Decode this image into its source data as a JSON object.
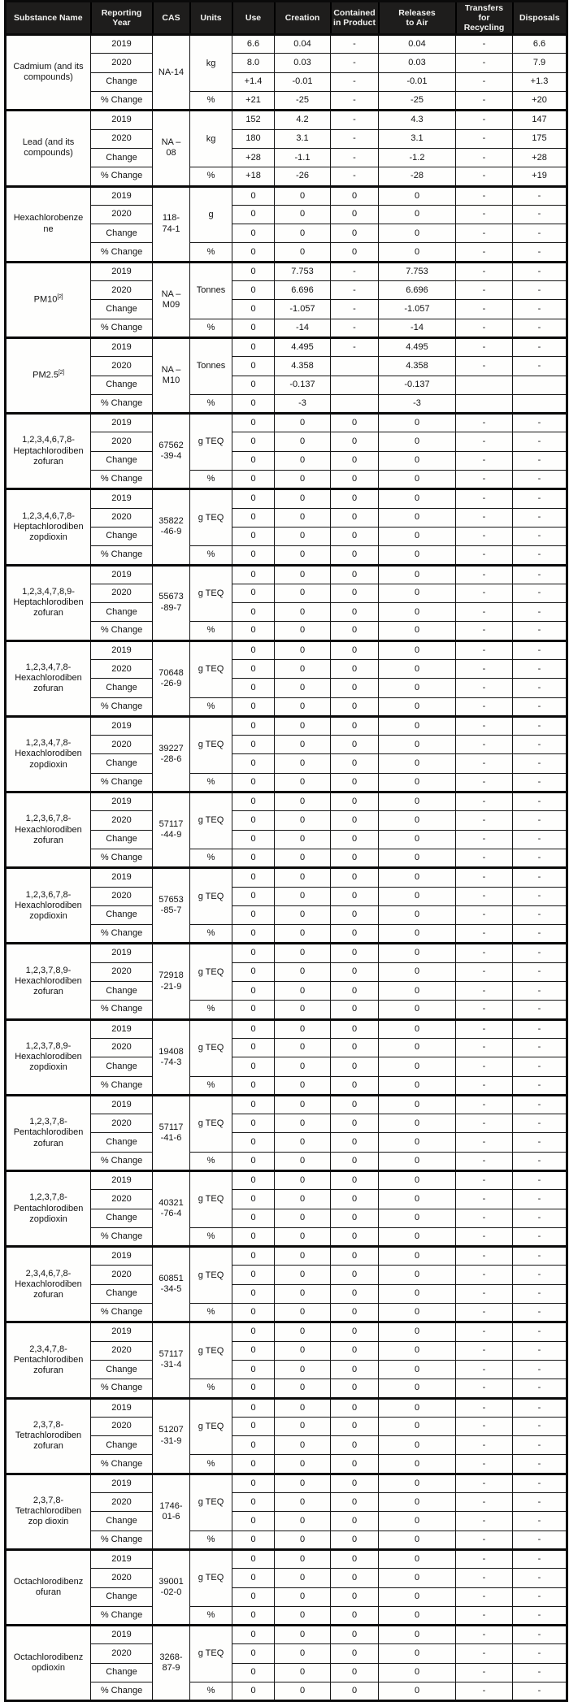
{
  "table": {
    "columns": [
      "Substance Name",
      "Reporting\nYear",
      "CAS",
      "Units",
      "Use",
      "Creation",
      "Contained\nin Product",
      "Releases\nto Air",
      "Transfers\nfor\nRecycling",
      "Disposals"
    ],
    "row_labels": [
      "2019",
      "2020",
      "Change",
      "% Change"
    ],
    "percent_unit": "%",
    "substances": [
      {
        "name": "Cadmium (and its\ncompounds)",
        "cas": "NA-14",
        "units": "kg",
        "rows": [
          [
            "6.6",
            "0.04",
            "-",
            "0.04",
            "-",
            "6.6"
          ],
          [
            "8.0",
            "0.03",
            "-",
            "0.03",
            "-",
            "7.9"
          ],
          [
            "+1.4",
            "-0.01",
            "-",
            "-0.01",
            "-",
            "+1.3"
          ],
          [
            "+21",
            "-25",
            "-",
            "-25",
            "-",
            "+20"
          ]
        ]
      },
      {
        "name": "Lead (and its\ncompounds)",
        "cas": "NA –\n08",
        "units": "kg",
        "rows": [
          [
            "152",
            "4.2",
            "-",
            "4.3",
            "-",
            "147"
          ],
          [
            "180",
            "3.1",
            "-",
            "3.1",
            "-",
            "175"
          ],
          [
            "+28",
            "-1.1",
            "-",
            "-1.2",
            "-",
            "+28"
          ],
          [
            "+18",
            "-26",
            "-",
            "-28",
            "-",
            "+19"
          ]
        ]
      },
      {
        "name": "Hexachlorobenze\nne",
        "cas": "118-\n74-1",
        "units": "g",
        "rows": [
          [
            "0",
            "0",
            "0",
            "0",
            "-",
            "-"
          ],
          [
            "0",
            "0",
            "0",
            "0",
            "-",
            "-"
          ],
          [
            "0",
            "0",
            "0",
            "0",
            "-",
            "-"
          ],
          [
            "0",
            "0",
            "0",
            "0",
            "-",
            "-"
          ]
        ]
      },
      {
        "name": "PM10",
        "sup": "[2]",
        "cas": "NA –\nM09",
        "units": "Tonnes",
        "rows": [
          [
            "0",
            "7.753",
            "-",
            "7.753",
            "-",
            "-"
          ],
          [
            "0",
            "6.696",
            "-",
            "6.696",
            "-",
            "-"
          ],
          [
            "0",
            "-1.057",
            "-",
            "-1.057",
            "-",
            "-"
          ],
          [
            "0",
            "-14",
            "-",
            "-14",
            "-",
            "-"
          ]
        ]
      },
      {
        "name": "PM2.5",
        "sup": "[2]",
        "cas": "NA –\nM10",
        "units": "Tonnes",
        "rows": [
          [
            "0",
            "4.495",
            "-",
            "4.495",
            "-",
            "-"
          ],
          [
            "0",
            "4.358",
            "",
            "4.358",
            "-",
            "-"
          ],
          [
            "0",
            "-0.137",
            "",
            "-0.137",
            "",
            ""
          ],
          [
            "0",
            "-3",
            "",
            "-3",
            "",
            ""
          ]
        ]
      },
      {
        "name": "1,2,3,4,6,7,8-\nHeptachlorodiben\nzofuran",
        "cas": "67562\n-39-4",
        "units": "g TEQ",
        "rows": [
          [
            "0",
            "0",
            "0",
            "0",
            "-",
            "-"
          ],
          [
            "0",
            "0",
            "0",
            "0",
            "-",
            "-"
          ],
          [
            "0",
            "0",
            "0",
            "0",
            "-",
            "-"
          ],
          [
            "0",
            "0",
            "0",
            "0",
            "-",
            "-"
          ]
        ]
      },
      {
        "name": "1,2,3,4,6,7,8-\nHeptachlorodiben\nzopdioxin",
        "cas": "35822\n-46-9",
        "units": "g TEQ",
        "rows": [
          [
            "0",
            "0",
            "0",
            "0",
            "-",
            "-"
          ],
          [
            "0",
            "0",
            "0",
            "0",
            "-",
            "-"
          ],
          [
            "0",
            "0",
            "0",
            "0",
            "-",
            "-"
          ],
          [
            "0",
            "0",
            "0",
            "0",
            "-",
            "-"
          ]
        ]
      },
      {
        "name": "1,2,3,4,7,8,9-\nHeptachlorodiben\nzofuran",
        "cas": "55673\n-89-7",
        "units": "g TEQ",
        "rows": [
          [
            "0",
            "0",
            "0",
            "0",
            "-",
            "-"
          ],
          [
            "0",
            "0",
            "0",
            "0",
            "-",
            "-"
          ],
          [
            "0",
            "0",
            "0",
            "0",
            "-",
            "-"
          ],
          [
            "0",
            "0",
            "0",
            "0",
            "-",
            "-"
          ]
        ]
      },
      {
        "name": "1,2,3,4,7,8-\nHexachlorodiben\nzofuran",
        "cas": "70648\n-26-9",
        "units": "g TEQ",
        "rows": [
          [
            "0",
            "0",
            "0",
            "0",
            "-",
            "-"
          ],
          [
            "0",
            "0",
            "0",
            "0",
            "-",
            "-"
          ],
          [
            "0",
            "0",
            "0",
            "0",
            "-",
            "-"
          ],
          [
            "0",
            "0",
            "0",
            "0",
            "-",
            "-"
          ]
        ]
      },
      {
        "name": "1,2,3,4,7,8-\nHexachlorodiben\nzopdioxin",
        "cas": "39227\n-28-6",
        "units": "g TEQ",
        "rows": [
          [
            "0",
            "0",
            "0",
            "0",
            "-",
            "-"
          ],
          [
            "0",
            "0",
            "0",
            "0",
            "-",
            "-"
          ],
          [
            "0",
            "0",
            "0",
            "0",
            "-",
            "-"
          ],
          [
            "0",
            "0",
            "0",
            "0",
            "-",
            "-"
          ]
        ]
      },
      {
        "name": "1,2,3,6,7,8-\nHexachlorodiben\nzofuran",
        "cas": "57117\n-44-9",
        "units": "g TEQ",
        "rows": [
          [
            "0",
            "0",
            "0",
            "0",
            "-",
            "-"
          ],
          [
            "0",
            "0",
            "0",
            "0",
            "-",
            "-"
          ],
          [
            "0",
            "0",
            "0",
            "0",
            "-",
            "-"
          ],
          [
            "0",
            "0",
            "0",
            "0",
            "-",
            "-"
          ]
        ]
      },
      {
        "name": "1,2,3,6,7,8-\nHexachlorodiben\nzopdioxin",
        "cas": "57653\n-85-7",
        "units": "g TEQ",
        "rows": [
          [
            "0",
            "0",
            "0",
            "0",
            "-",
            "-"
          ],
          [
            "0",
            "0",
            "0",
            "0",
            "-",
            "-"
          ],
          [
            "0",
            "0",
            "0",
            "0",
            "-",
            "-"
          ],
          [
            "0",
            "0",
            "0",
            "0",
            "-",
            "-"
          ]
        ]
      },
      {
        "name": "1,2,3,7,8,9-\nHexachlorodiben\nzofuran",
        "cas": "72918\n-21-9",
        "units": "g TEQ",
        "rows": [
          [
            "0",
            "0",
            "0",
            "0",
            "-",
            "-"
          ],
          [
            "0",
            "0",
            "0",
            "0",
            "-",
            "-"
          ],
          [
            "0",
            "0",
            "0",
            "0",
            "-",
            "-"
          ],
          [
            "0",
            "0",
            "0",
            "0",
            "-",
            "-"
          ]
        ]
      },
      {
        "name": "1,2,3,7,8,9-\nHexachlorodiben\nzopdioxin",
        "cas": "19408\n-74-3",
        "units": "g TEQ",
        "rows": [
          [
            "0",
            "0",
            "0",
            "0",
            "-",
            "-"
          ],
          [
            "0",
            "0",
            "0",
            "0",
            "-",
            "-"
          ],
          [
            "0",
            "0",
            "0",
            "0",
            "-",
            "-"
          ],
          [
            "0",
            "0",
            "0",
            "0",
            "-",
            "-"
          ]
        ]
      },
      {
        "name": "1,2,3,7,8-\nPentachlorodiben\nzofuran",
        "cas": "57117\n-41-6",
        "units": "g TEQ",
        "rows": [
          [
            "0",
            "0",
            "0",
            "0",
            "-",
            "-"
          ],
          [
            "0",
            "0",
            "0",
            "0",
            "-",
            "-"
          ],
          [
            "0",
            "0",
            "0",
            "0",
            "-",
            "-"
          ],
          [
            "0",
            "0",
            "0",
            "0",
            "-",
            "-"
          ]
        ]
      },
      {
        "name": "1,2,3,7,8-\nPentachlorodiben\nzopdioxin",
        "cas": "40321\n-76-4",
        "units": "g TEQ",
        "rows": [
          [
            "0",
            "0",
            "0",
            "0",
            "-",
            "-"
          ],
          [
            "0",
            "0",
            "0",
            "0",
            "-",
            "-"
          ],
          [
            "0",
            "0",
            "0",
            "0",
            "-",
            "-"
          ],
          [
            "0",
            "0",
            "0",
            "0",
            "-",
            "-"
          ]
        ]
      },
      {
        "name": "2,3,4,6,7,8-\nHexachlorodiben\nzofuran",
        "cas": "60851\n-34-5",
        "units": "g TEQ",
        "rows": [
          [
            "0",
            "0",
            "0",
            "0",
            "-",
            "-"
          ],
          [
            "0",
            "0",
            "0",
            "0",
            "-",
            "-"
          ],
          [
            "0",
            "0",
            "0",
            "0",
            "-",
            "-"
          ],
          [
            "0",
            "0",
            "0",
            "0",
            "-",
            "-"
          ]
        ]
      },
      {
        "name": "2,3,4,7,8-\nPentachlorodiben\nzofuran",
        "cas": "57117\n-31-4",
        "units": "g TEQ",
        "rows": [
          [
            "0",
            "0",
            "0",
            "0",
            "-",
            "-"
          ],
          [
            "0",
            "0",
            "0",
            "0",
            "-",
            "-"
          ],
          [
            "0",
            "0",
            "0",
            "0",
            "-",
            "-"
          ],
          [
            "0",
            "0",
            "0",
            "0",
            "-",
            "-"
          ]
        ]
      },
      {
        "name": "2,3,7,8-\nTetrachlorodiben\nzofuran",
        "cas": "51207\n-31-9",
        "units": "g TEQ",
        "rows": [
          [
            "0",
            "0",
            "0",
            "0",
            "-",
            "-"
          ],
          [
            "0",
            "0",
            "0",
            "0",
            "-",
            "-"
          ],
          [
            "0",
            "0",
            "0",
            "0",
            "-",
            "-"
          ],
          [
            "0",
            "0",
            "0",
            "0",
            "-",
            "-"
          ]
        ]
      },
      {
        "name": "2,3,7,8-\nTetrachlorodiben\nzop dioxin",
        "cas": "1746-\n01-6",
        "units": "g TEQ",
        "rows": [
          [
            "0",
            "0",
            "0",
            "0",
            "-",
            "-"
          ],
          [
            "0",
            "0",
            "0",
            "0",
            "-",
            "-"
          ],
          [
            "0",
            "0",
            "0",
            "0",
            "-",
            "-"
          ],
          [
            "0",
            "0",
            "0",
            "0",
            "-",
            "-"
          ]
        ]
      },
      {
        "name": "Octachlorodibenz\nofuran",
        "cas": "39001\n-02-0",
        "units": "g TEQ",
        "rows": [
          [
            "0",
            "0",
            "0",
            "0",
            "-",
            "-"
          ],
          [
            "0",
            "0",
            "0",
            "0",
            "-",
            "-"
          ],
          [
            "0",
            "0",
            "0",
            "0",
            "-",
            "-"
          ],
          [
            "0",
            "0",
            "0",
            "0",
            "-",
            "-"
          ]
        ]
      },
      {
        "name": "Octachlorodibenz\nopdioxin",
        "cas": "3268-\n87-9",
        "units": "g TEQ",
        "rows": [
          [
            "0",
            "0",
            "0",
            "0",
            "-",
            "-"
          ],
          [
            "0",
            "0",
            "0",
            "0",
            "-",
            "-"
          ],
          [
            "0",
            "0",
            "0",
            "0",
            "-",
            "-"
          ],
          [
            "0",
            "0",
            "0",
            "0",
            "-",
            "-"
          ]
        ]
      }
    ]
  },
  "colors": {
    "header_bg": "#1e1d1c",
    "header_text": "#f2f2f0",
    "border": "#0a0a0a",
    "paper": "#fdfdfb"
  }
}
